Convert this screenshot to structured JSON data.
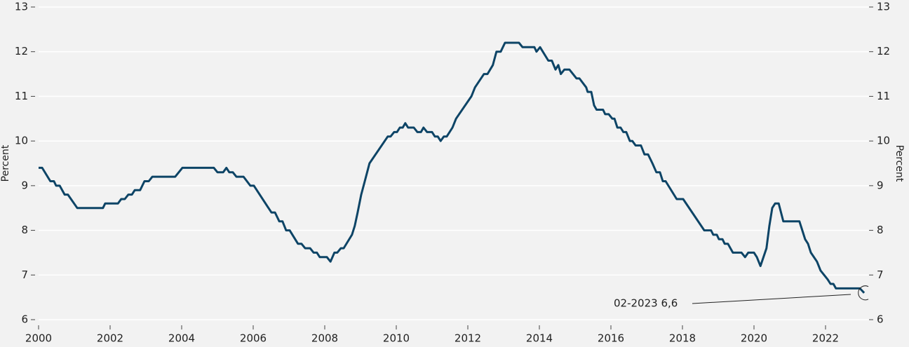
{
  "chart_data": {
    "type": "line",
    "y_label": "Percent",
    "annotation": "02-2023 6,6",
    "xlim": [
      2000,
      2023.5
    ],
    "xticks": [
      2000,
      2002,
      2004,
      2006,
      2008,
      2010,
      2012,
      2014,
      2016,
      2018,
      2020,
      2022
    ],
    "ylim": [
      6,
      13
    ],
    "yticks": [
      6,
      7,
      8,
      9,
      10,
      11,
      12,
      13
    ],
    "grid": true,
    "series": [
      {
        "color": "#0d4466",
        "x": [
          2000.0,
          2000.1,
          2000.33,
          2000.43,
          2000.49,
          2000.59,
          2000.73,
          2000.82,
          2001.08,
          2001.8,
          2001.86,
          2002.22,
          2002.31,
          2002.41,
          2002.51,
          2002.61,
          2002.69,
          2002.84,
          2002.96,
          2003.08,
          2003.18,
          2003.82,
          2004.02,
          2004.9,
          2005.0,
          2005.16,
          2005.25,
          2005.33,
          2005.43,
          2005.53,
          2005.73,
          2005.92,
          2006.02,
          2006.51,
          2006.61,
          2006.73,
          2006.82,
          2006.92,
          2007.02,
          2007.25,
          2007.35,
          2007.45,
          2007.59,
          2007.69,
          2007.78,
          2007.86,
          2008.06,
          2008.16,
          2008.27,
          2008.35,
          2008.45,
          2008.53,
          2008.76,
          2008.84,
          2008.92,
          2009.02,
          2009.12,
          2009.25,
          2009.76,
          2009.84,
          2009.94,
          2010.02,
          2010.1,
          2010.18,
          2010.25,
          2010.33,
          2010.49,
          2010.59,
          2010.69,
          2010.76,
          2010.86,
          2011.0,
          2011.08,
          2011.16,
          2011.24,
          2011.33,
          2011.41,
          2011.57,
          2011.67,
          2012.1,
          2012.2,
          2012.45,
          2012.55,
          2012.7,
          2012.8,
          2012.92,
          2013.04,
          2013.43,
          2013.53,
          2013.86,
          2013.92,
          2014.02,
          2014.25,
          2014.35,
          2014.45,
          2014.53,
          2014.6,
          2014.7,
          2014.84,
          2015.04,
          2015.12,
          2015.31,
          2015.35,
          2015.45,
          2015.53,
          2015.6,
          2015.78,
          2015.84,
          2015.94,
          2016.04,
          2016.1,
          2016.18,
          2016.27,
          2016.35,
          2016.43,
          2016.53,
          2016.6,
          2016.69,
          2016.84,
          2016.94,
          2017.04,
          2017.16,
          2017.27,
          2017.37,
          2017.45,
          2017.53,
          2017.84,
          2018.02,
          2018.61,
          2018.8,
          2018.86,
          2018.96,
          2019.02,
          2019.12,
          2019.18,
          2019.27,
          2019.41,
          2019.65,
          2019.75,
          2019.84,
          2020.0,
          2020.08,
          2020.18,
          2020.35,
          2020.43,
          2020.51,
          2020.59,
          2020.69,
          2020.82,
          2021.27,
          2021.43,
          2021.51,
          2021.59,
          2021.76,
          2021.86,
          2022.06,
          2022.14,
          2022.22,
          2022.29,
          2022.96,
          2023.08
        ],
        "values": [
          9.4,
          9.4,
          9.1,
          9.1,
          9.0,
          9.0,
          8.8,
          8.8,
          8.5,
          8.5,
          8.6,
          8.6,
          8.7,
          8.7,
          8.8,
          8.8,
          8.9,
          8.9,
          9.1,
          9.1,
          9.2,
          9.2,
          9.4,
          9.4,
          9.3,
          9.3,
          9.4,
          9.3,
          9.3,
          9.2,
          9.2,
          9.0,
          9.0,
          8.4,
          8.4,
          8.2,
          8.2,
          8.0,
          8.0,
          7.7,
          7.7,
          7.6,
          7.6,
          7.5,
          7.5,
          7.4,
          7.4,
          7.3,
          7.5,
          7.5,
          7.6,
          7.6,
          7.9,
          8.1,
          8.4,
          8.8,
          9.1,
          9.5,
          10.1,
          10.1,
          10.2,
          10.2,
          10.3,
          10.3,
          10.4,
          10.3,
          10.3,
          10.2,
          10.2,
          10.3,
          10.2,
          10.2,
          10.1,
          10.1,
          10.0,
          10.1,
          10.1,
          10.3,
          10.5,
          11.0,
          11.2,
          11.5,
          11.5,
          11.7,
          12.0,
          12.0,
          12.2,
          12.2,
          12.1,
          12.1,
          12.0,
          12.1,
          11.8,
          11.8,
          11.6,
          11.7,
          11.5,
          11.6,
          11.6,
          11.4,
          11.4,
          11.2,
          11.1,
          11.1,
          10.8,
          10.7,
          10.7,
          10.6,
          10.6,
          10.5,
          10.5,
          10.3,
          10.3,
          10.2,
          10.2,
          10.0,
          10.0,
          9.9,
          9.9,
          9.7,
          9.7,
          9.5,
          9.3,
          9.3,
          9.1,
          9.1,
          8.7,
          8.7,
          8.0,
          8.0,
          7.9,
          7.9,
          7.8,
          7.8,
          7.7,
          7.7,
          7.5,
          7.5,
          7.4,
          7.5,
          7.5,
          7.4,
          7.2,
          7.6,
          8.1,
          8.5,
          8.6,
          8.6,
          8.2,
          8.2,
          7.8,
          7.7,
          7.5,
          7.3,
          7.1,
          6.9,
          6.8,
          6.8,
          6.7,
          6.7,
          6.6
        ]
      }
    ]
  }
}
